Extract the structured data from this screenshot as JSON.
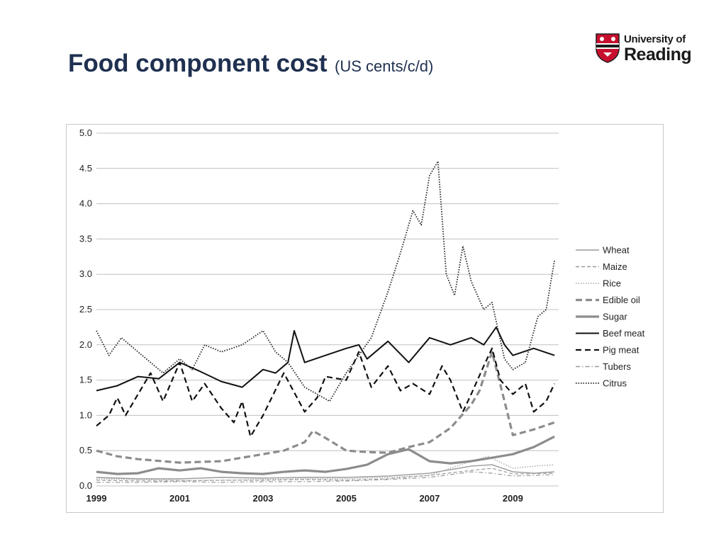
{
  "slide": {
    "title_main": "Food component cost",
    "title_unit": "(US cents/c/d)",
    "logo_line1": "University of",
    "logo_line2": "Reading"
  },
  "colors": {
    "title": "#1f3050",
    "logo_red": "#c8102e",
    "gridline": "#c0c0c0"
  },
  "chart_data": {
    "type": "line",
    "title": "",
    "xlabel": "",
    "ylabel": "",
    "xlim": [
      1999,
      2010.1
    ],
    "ylim": [
      0,
      5
    ],
    "x_ticks": [
      "1999",
      "2001",
      "2003",
      "2005",
      "2007",
      "2009"
    ],
    "y_ticks": [
      "0.0",
      "0.5",
      "1.0",
      "1.5",
      "2.0",
      "2.5",
      "3.0",
      "3.5",
      "4.0",
      "4.5",
      "5.0"
    ],
    "grid": "horizontal",
    "legend_position": "right",
    "series": [
      {
        "name": "Wheat",
        "style": "thin-solid-gray",
        "points": [
          [
            1999,
            0.12
          ],
          [
            2000,
            0.1
          ],
          [
            2001,
            0.1
          ],
          [
            2002,
            0.12
          ],
          [
            2003,
            0.11
          ],
          [
            2004,
            0.12
          ],
          [
            2005,
            0.12
          ],
          [
            2006,
            0.14
          ],
          [
            2007,
            0.18
          ],
          [
            2008,
            0.28
          ],
          [
            2008.5,
            0.3
          ],
          [
            2009,
            0.2
          ],
          [
            2009.5,
            0.18
          ],
          [
            2010,
            0.2
          ]
        ]
      },
      {
        "name": "Maize",
        "style": "thin-dashed-gray",
        "points": [
          [
            1999,
            0.08
          ],
          [
            2000,
            0.07
          ],
          [
            2001,
            0.07
          ],
          [
            2002,
            0.08
          ],
          [
            2003,
            0.08
          ],
          [
            2004,
            0.09
          ],
          [
            2005,
            0.08
          ],
          [
            2006,
            0.1
          ],
          [
            2007,
            0.15
          ],
          [
            2008,
            0.22
          ],
          [
            2008.5,
            0.25
          ],
          [
            2009,
            0.17
          ],
          [
            2010,
            0.18
          ]
        ]
      },
      {
        "name": "Rice",
        "style": "dotted-gray",
        "points": [
          [
            1999,
            0.1
          ],
          [
            2000,
            0.09
          ],
          [
            2001,
            0.08
          ],
          [
            2002,
            0.08
          ],
          [
            2003,
            0.09
          ],
          [
            2004,
            0.1
          ],
          [
            2005,
            0.1
          ],
          [
            2006,
            0.12
          ],
          [
            2007,
            0.15
          ],
          [
            2008,
            0.35
          ],
          [
            2008.4,
            0.42
          ],
          [
            2009,
            0.25
          ],
          [
            2009.5,
            0.28
          ],
          [
            2010,
            0.3
          ]
        ]
      },
      {
        "name": "Edible oil",
        "style": "thick-dashed-gray",
        "points": [
          [
            1999,
            0.5
          ],
          [
            1999.5,
            0.42
          ],
          [
            2000,
            0.38
          ],
          [
            2001,
            0.33
          ],
          [
            2002,
            0.35
          ],
          [
            2003,
            0.45
          ],
          [
            2003.5,
            0.5
          ],
          [
            2004,
            0.62
          ],
          [
            2004.2,
            0.78
          ],
          [
            2004.5,
            0.68
          ],
          [
            2005,
            0.5
          ],
          [
            2005.5,
            0.48
          ],
          [
            2006,
            0.47
          ],
          [
            2006.5,
            0.55
          ],
          [
            2007,
            0.62
          ],
          [
            2007.5,
            0.82
          ],
          [
            2008,
            1.15
          ],
          [
            2008.2,
            1.35
          ],
          [
            2008.5,
            1.9
          ],
          [
            2008.8,
            1.2
          ],
          [
            2009,
            0.72
          ],
          [
            2009.5,
            0.8
          ],
          [
            2010,
            0.9
          ]
        ]
      },
      {
        "name": "Sugar",
        "style": "thick-solid-gray",
        "points": [
          [
            1999,
            0.2
          ],
          [
            1999.5,
            0.17
          ],
          [
            2000,
            0.18
          ],
          [
            2000.5,
            0.25
          ],
          [
            2001,
            0.22
          ],
          [
            2001.5,
            0.25
          ],
          [
            2002,
            0.2
          ],
          [
            2002.5,
            0.18
          ],
          [
            2003,
            0.17
          ],
          [
            2003.5,
            0.2
          ],
          [
            2004,
            0.22
          ],
          [
            2004.5,
            0.2
          ],
          [
            2005,
            0.24
          ],
          [
            2005.5,
            0.3
          ],
          [
            2006,
            0.45
          ],
          [
            2006.5,
            0.52
          ],
          [
            2007,
            0.35
          ],
          [
            2007.5,
            0.32
          ],
          [
            2008,
            0.35
          ],
          [
            2008.5,
            0.4
          ],
          [
            2009,
            0.45
          ],
          [
            2009.5,
            0.55
          ],
          [
            2010,
            0.7
          ]
        ]
      },
      {
        "name": "Beef meat",
        "style": "solid-black",
        "points": [
          [
            1999,
            1.35
          ],
          [
            1999.5,
            1.42
          ],
          [
            2000,
            1.55
          ],
          [
            2000.5,
            1.52
          ],
          [
            2001,
            1.75
          ],
          [
            2001.5,
            1.62
          ],
          [
            2002,
            1.48
          ],
          [
            2002.5,
            1.4
          ],
          [
            2003,
            1.65
          ],
          [
            2003.3,
            1.6
          ],
          [
            2003.6,
            1.75
          ],
          [
            2003.75,
            2.2
          ],
          [
            2004,
            1.75
          ],
          [
            2004.5,
            1.85
          ],
          [
            2005,
            1.95
          ],
          [
            2005.3,
            2.0
          ],
          [
            2005.5,
            1.8
          ],
          [
            2006,
            2.05
          ],
          [
            2006.5,
            1.75
          ],
          [
            2007,
            2.1
          ],
          [
            2007.5,
            2.0
          ],
          [
            2008,
            2.1
          ],
          [
            2008.3,
            2.0
          ],
          [
            2008.6,
            2.25
          ],
          [
            2008.8,
            2.0
          ],
          [
            2009,
            1.85
          ],
          [
            2009.5,
            1.95
          ],
          [
            2010,
            1.85
          ]
        ]
      },
      {
        "name": "Pig meat",
        "style": "dashed-black",
        "points": [
          [
            1999,
            0.85
          ],
          [
            1999.3,
            1.0
          ],
          [
            1999.5,
            1.25
          ],
          [
            1999.7,
            1.0
          ],
          [
            2000,
            1.3
          ],
          [
            2000.3,
            1.6
          ],
          [
            2000.6,
            1.2
          ],
          [
            2001,
            1.75
          ],
          [
            2001.3,
            1.2
          ],
          [
            2001.6,
            1.45
          ],
          [
            2002,
            1.1
          ],
          [
            2002.3,
            0.9
          ],
          [
            2002.5,
            1.2
          ],
          [
            2002.7,
            0.7
          ],
          [
            2003,
            1.0
          ],
          [
            2003.5,
            1.6
          ],
          [
            2004,
            1.05
          ],
          [
            2004.3,
            1.25
          ],
          [
            2004.5,
            1.55
          ],
          [
            2005,
            1.5
          ],
          [
            2005.3,
            1.9
          ],
          [
            2005.6,
            1.4
          ],
          [
            2006,
            1.7
          ],
          [
            2006.3,
            1.35
          ],
          [
            2006.6,
            1.45
          ],
          [
            2007,
            1.3
          ],
          [
            2007.3,
            1.7
          ],
          [
            2007.5,
            1.5
          ],
          [
            2007.8,
            1.05
          ],
          [
            2008,
            1.3
          ],
          [
            2008.3,
            1.7
          ],
          [
            2008.5,
            1.95
          ],
          [
            2008.7,
            1.5
          ],
          [
            2009,
            1.3
          ],
          [
            2009.3,
            1.45
          ],
          [
            2009.5,
            1.05
          ],
          [
            2009.8,
            1.2
          ],
          [
            2010,
            1.45
          ]
        ]
      },
      {
        "name": "Tubers",
        "style": "dashdot-gray",
        "points": [
          [
            1999,
            0.05
          ],
          [
            2000,
            0.05
          ],
          [
            2001,
            0.06
          ],
          [
            2002,
            0.05
          ],
          [
            2003,
            0.06
          ],
          [
            2004,
            0.06
          ],
          [
            2005,
            0.07
          ],
          [
            2006,
            0.09
          ],
          [
            2007,
            0.12
          ],
          [
            2008,
            0.2
          ],
          [
            2008.5,
            0.18
          ],
          [
            2009,
            0.14
          ],
          [
            2010,
            0.16
          ]
        ]
      },
      {
        "name": "Citrus",
        "style": "dotted-black",
        "points": [
          [
            1999,
            2.2
          ],
          [
            1999.3,
            1.85
          ],
          [
            1999.6,
            2.1
          ],
          [
            2000,
            1.9
          ],
          [
            2000.3,
            1.75
          ],
          [
            2000.6,
            1.6
          ],
          [
            2001,
            1.8
          ],
          [
            2001.3,
            1.65
          ],
          [
            2001.6,
            2.0
          ],
          [
            2002,
            1.9
          ],
          [
            2002.5,
            2.0
          ],
          [
            2003,
            2.2
          ],
          [
            2003.3,
            1.9
          ],
          [
            2003.6,
            1.75
          ],
          [
            2004,
            1.4
          ],
          [
            2004.3,
            1.3
          ],
          [
            2004.6,
            1.2
          ],
          [
            2005,
            1.6
          ],
          [
            2005.3,
            1.85
          ],
          [
            2005.6,
            2.1
          ],
          [
            2006,
            2.75
          ],
          [
            2006.3,
            3.3
          ],
          [
            2006.6,
            3.9
          ],
          [
            2006.8,
            3.7
          ],
          [
            2007,
            4.4
          ],
          [
            2007.2,
            4.6
          ],
          [
            2007.4,
            3.0
          ],
          [
            2007.6,
            2.7
          ],
          [
            2007.8,
            3.4
          ],
          [
            2008,
            2.9
          ],
          [
            2008.3,
            2.5
          ],
          [
            2008.5,
            2.6
          ],
          [
            2008.8,
            1.8
          ],
          [
            2009,
            1.65
          ],
          [
            2009.3,
            1.75
          ],
          [
            2009.6,
            2.4
          ],
          [
            2009.8,
            2.5
          ],
          [
            2010,
            3.2
          ]
        ]
      }
    ]
  }
}
